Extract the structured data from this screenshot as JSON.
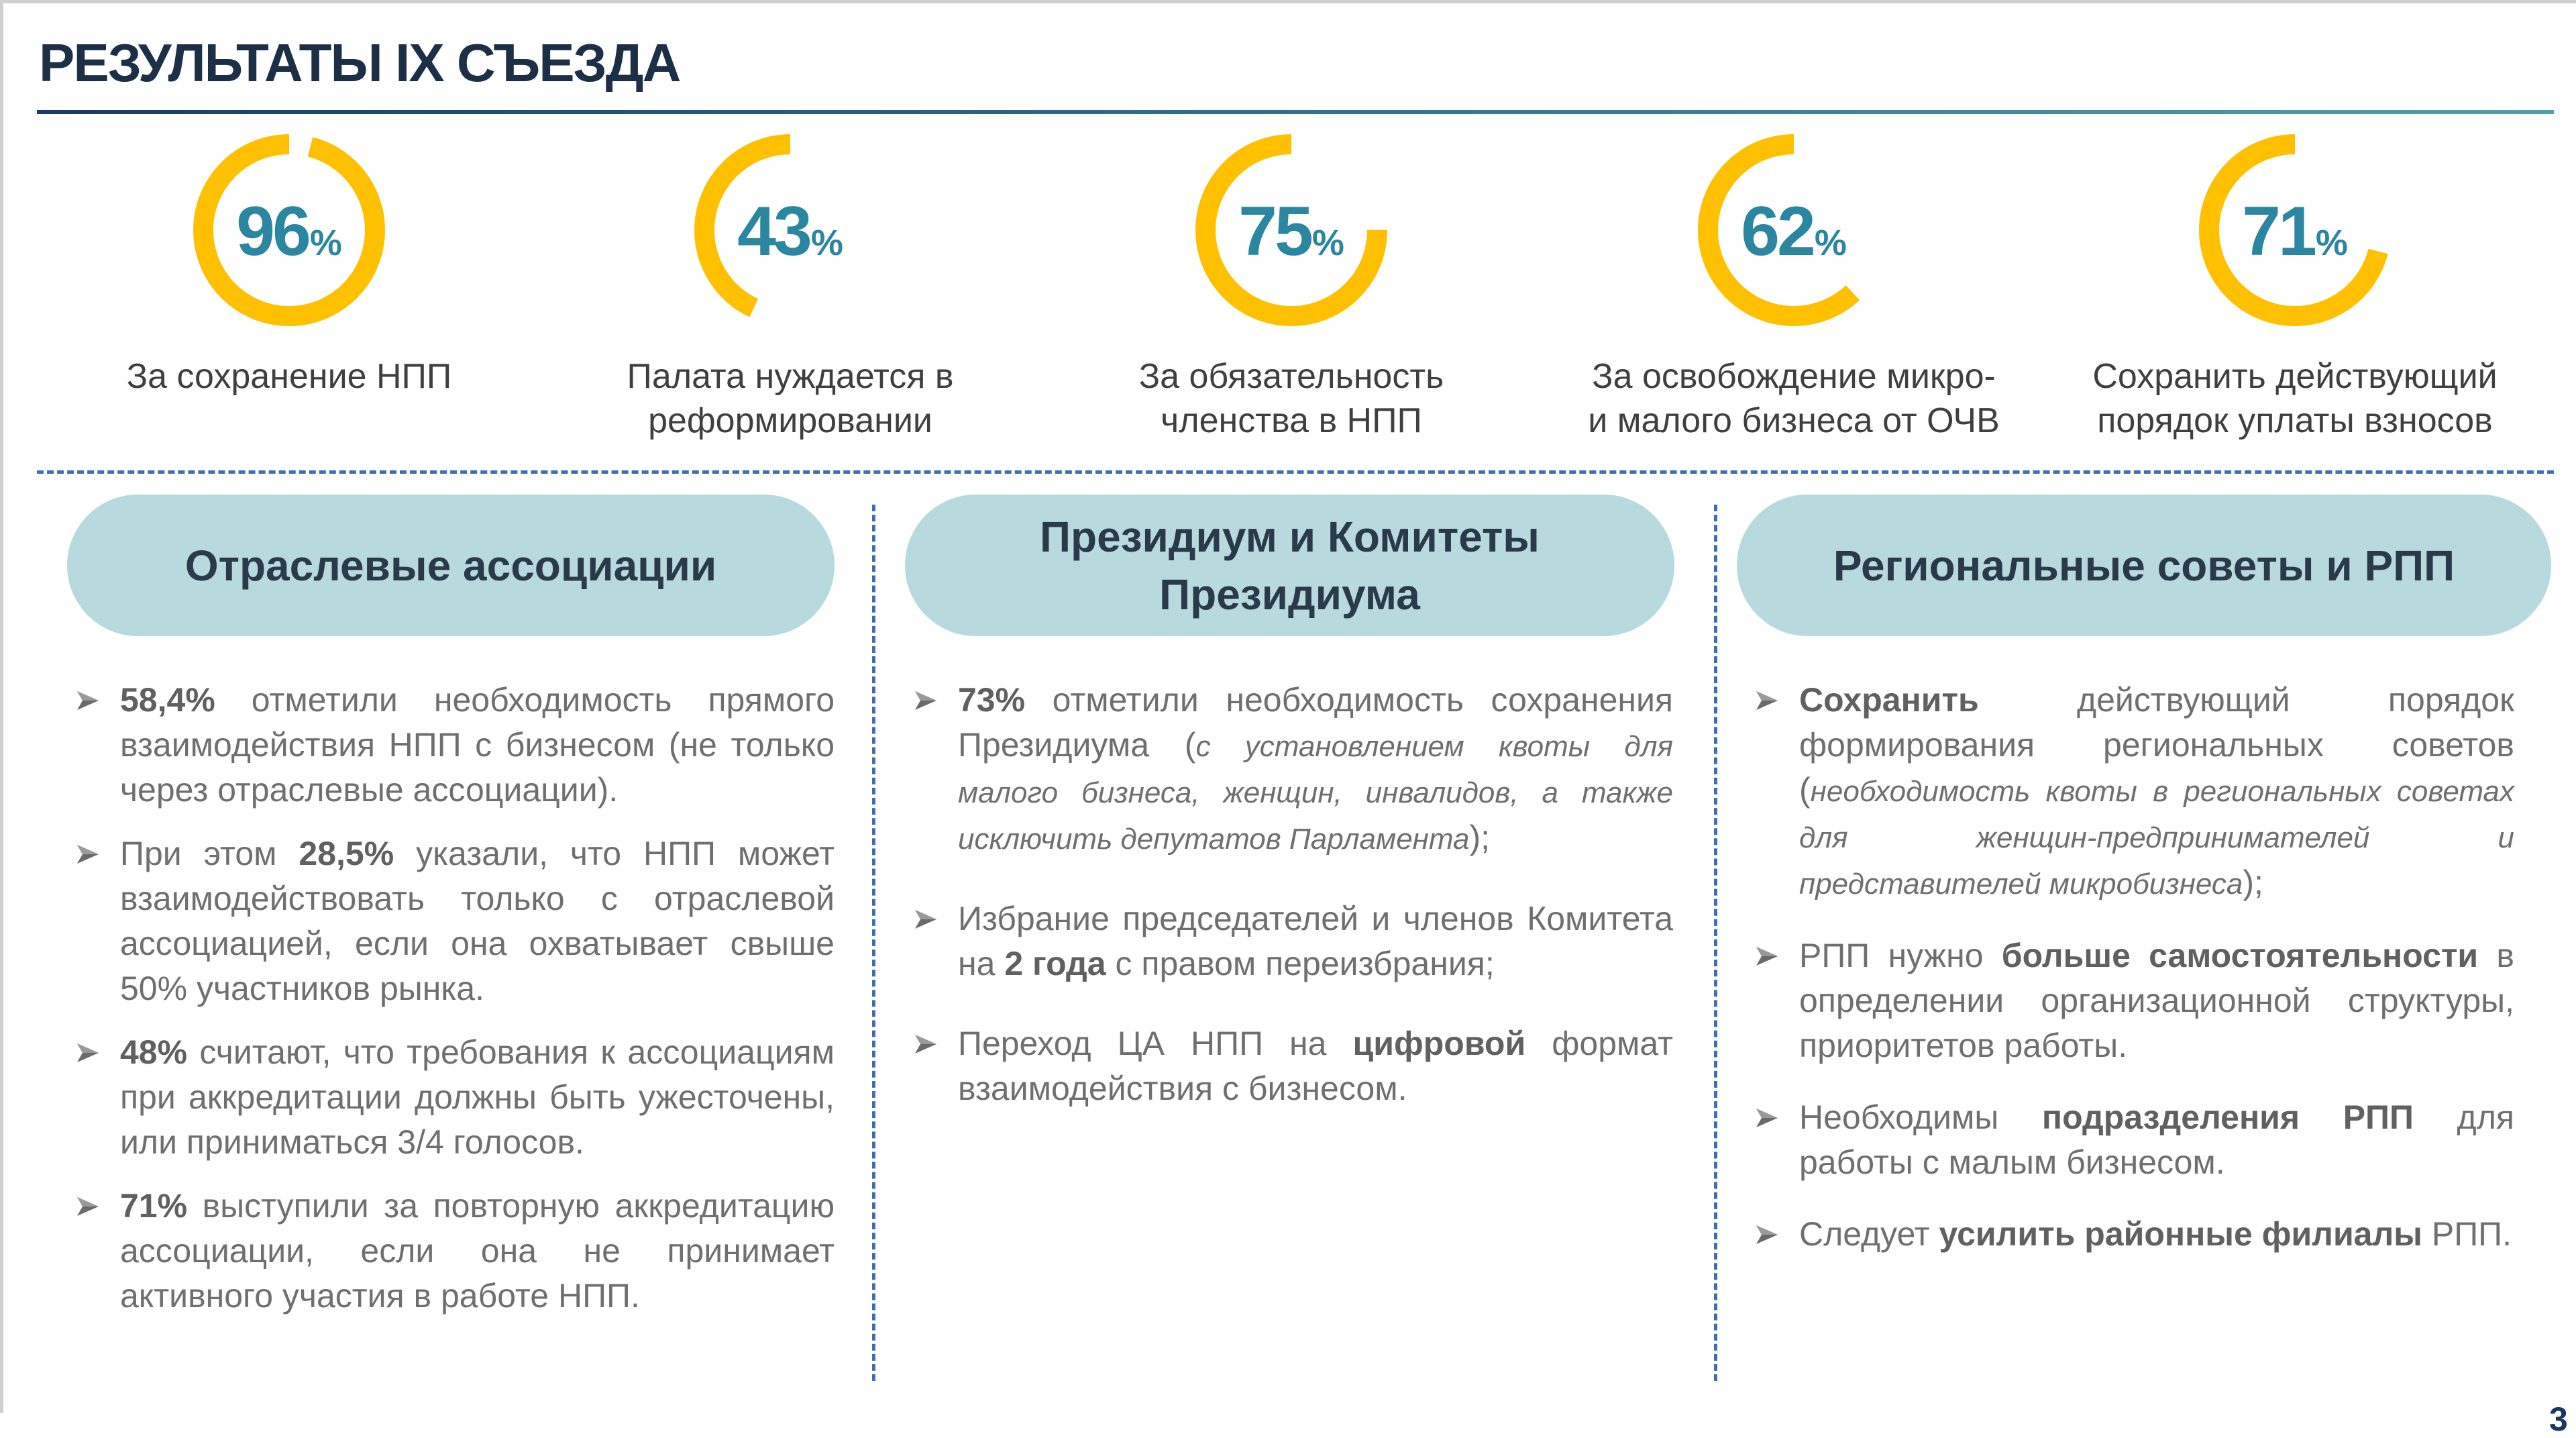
{
  "slide": {
    "title": "РЕЗУЛЬТАТЫ IX СЪЕЗДА",
    "page_number": "3"
  },
  "colors": {
    "title": "#1d2f44",
    "ring": "#ffc000",
    "ring_value": "#2b86a0",
    "pill": "#b8dadf",
    "divider": "#3e6db5",
    "body_text": "#6f6f6f"
  },
  "stats": [
    {
      "value": "96",
      "unit": "%",
      "percent": 96,
      "label_line1": "За сохранение НПП",
      "label_line2": ""
    },
    {
      "value": "43",
      "unit": "%",
      "percent": 43,
      "label_line1": "Палата нуждается в",
      "label_line2": "реформировании"
    },
    {
      "value": "75",
      "unit": "%",
      "percent": 75,
      "label_line1": "За обязательность",
      "label_line2": "членства в НПП"
    },
    {
      "value": "62",
      "unit": "%",
      "percent": 62,
      "label_line1": "За освобождение микро-",
      "label_line2": "и малого бизнеса от ОЧВ"
    },
    {
      "value": "71",
      "unit": "%",
      "percent": 71,
      "label_line1": "Сохранить действующий",
      "label_line2": "порядок уплаты взносов"
    }
  ],
  "columns": [
    {
      "heading_line1": "Отраслевые ассоциации",
      "heading_line2": "",
      "items": [
        {
          "parts": [
            {
              "t": "58,4%",
              "s": "b"
            },
            {
              "t": " отметили необходимость прямого взаимодействия НПП с бизнесом (не только через отраслевые ассоциации).",
              "s": ""
            }
          ]
        },
        {
          "parts": [
            {
              "t": "При этом ",
              "s": ""
            },
            {
              "t": "28,5%",
              "s": "b"
            },
            {
              "t": " указали, что НПП может взаимодействовать только с отраслевой ассоциацией, если она охватывает свыше 50% участников рынка.",
              "s": ""
            }
          ]
        },
        {
          "parts": [
            {
              "t": "48%",
              "s": "b"
            },
            {
              "t": " считают, что требования к ассоциациям при аккредитации должны быть ужесточены, или приниматься 3/4 голосов.",
              "s": ""
            }
          ]
        },
        {
          "parts": [
            {
              "t": "71%",
              "s": "b"
            },
            {
              "t": " выступили за повторную аккредитацию ассоциации, если она не принимает активного участия в работе НПП.",
              "s": ""
            }
          ]
        }
      ]
    },
    {
      "heading_line1": "Президиум и Комитеты",
      "heading_line2": "Президиума",
      "items": [
        {
          "parts": [
            {
              "t": "73%",
              "s": "b"
            },
            {
              "t": " отметили необходимость сохранения Президиума (",
              "s": ""
            },
            {
              "t": "с установлением квоты для малого бизнеса, женщин, инвалидов, а также исключить депутатов Парламента",
              "s": "it"
            },
            {
              "t": ");",
              "s": ""
            }
          ]
        },
        {
          "parts": [
            {
              "t": "Избрание председателей и членов Комитета на ",
              "s": ""
            },
            {
              "t": "2 года",
              "s": "b"
            },
            {
              "t": " с правом переизбрания;",
              "s": ""
            }
          ]
        },
        {
          "parts": [
            {
              "t": "Переход ЦА НПП на ",
              "s": ""
            },
            {
              "t": "цифровой",
              "s": "b"
            },
            {
              "t": " формат взаимодействия с бизнесом.",
              "s": ""
            }
          ]
        }
      ]
    },
    {
      "heading_line1": "Региональные советы и РПП",
      "heading_line2": "",
      "items": [
        {
          "parts": [
            {
              "t": "Сохранить",
              "s": "b"
            },
            {
              "t": " действующий порядок формирования региональных советов (",
              "s": ""
            },
            {
              "t": "необходимость квоты в региональных советах для женщин-предпринимателей и представителей микробизнеса",
              "s": "it"
            },
            {
              "t": ");",
              "s": ""
            }
          ]
        },
        {
          "parts": [
            {
              "t": "РПП нужно ",
              "s": ""
            },
            {
              "t": "больше самостоятельности",
              "s": "b"
            },
            {
              "t": " в определении организационной структуры, приоритетов работы.",
              "s": ""
            }
          ]
        },
        {
          "parts": [
            {
              "t": "Необходимы ",
              "s": ""
            },
            {
              "t": "подразделения РПП",
              "s": "b"
            },
            {
              "t": " для работы с малым бизнесом.",
              "s": ""
            }
          ]
        },
        {
          "parts": [
            {
              "t": "Следует ",
              "s": ""
            },
            {
              "t": "усилить районные филиалы",
              "s": "b"
            },
            {
              "t": " РПП.",
              "s": ""
            }
          ]
        }
      ]
    }
  ]
}
